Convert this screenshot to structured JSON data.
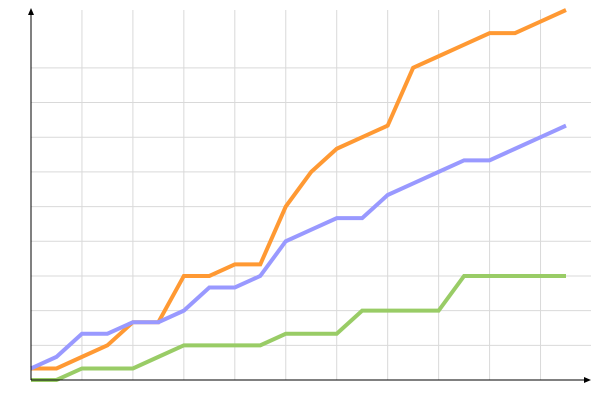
{
  "chart_data": {
    "type": "line",
    "title": "",
    "xlabel": "",
    "ylabel": "",
    "xlim": [
      0,
      21
    ],
    "ylim": [
      0,
      32
    ],
    "grid": true,
    "x_grid_step": 2,
    "y_grid_step": 3,
    "legend": "none",
    "x": [
      0,
      1,
      2,
      3,
      4,
      5,
      6,
      7,
      8,
      9,
      10,
      11,
      12,
      13,
      14,
      15,
      16,
      17,
      18,
      19,
      20,
      21
    ],
    "series": [
      {
        "color": "#ff9933",
        "values": [
          1,
          1,
          2,
          3,
          5,
          5,
          9,
          9,
          10,
          10,
          15,
          18,
          20,
          21,
          22,
          27,
          28,
          29,
          30,
          30,
          31,
          32
        ]
      },
      {
        "color": "#9999ff",
        "values": [
          1,
          2,
          4,
          4,
          5,
          5,
          6,
          8,
          8,
          9,
          12,
          13,
          14,
          14,
          16,
          17,
          18,
          19,
          19,
          20,
          21,
          22
        ]
      },
      {
        "color": "#99cc66",
        "values": [
          0,
          0,
          1,
          1,
          1,
          2,
          3,
          3,
          3,
          3,
          4,
          4,
          4,
          6,
          6,
          6,
          6,
          9,
          9,
          9,
          9,
          9
        ]
      }
    ]
  }
}
